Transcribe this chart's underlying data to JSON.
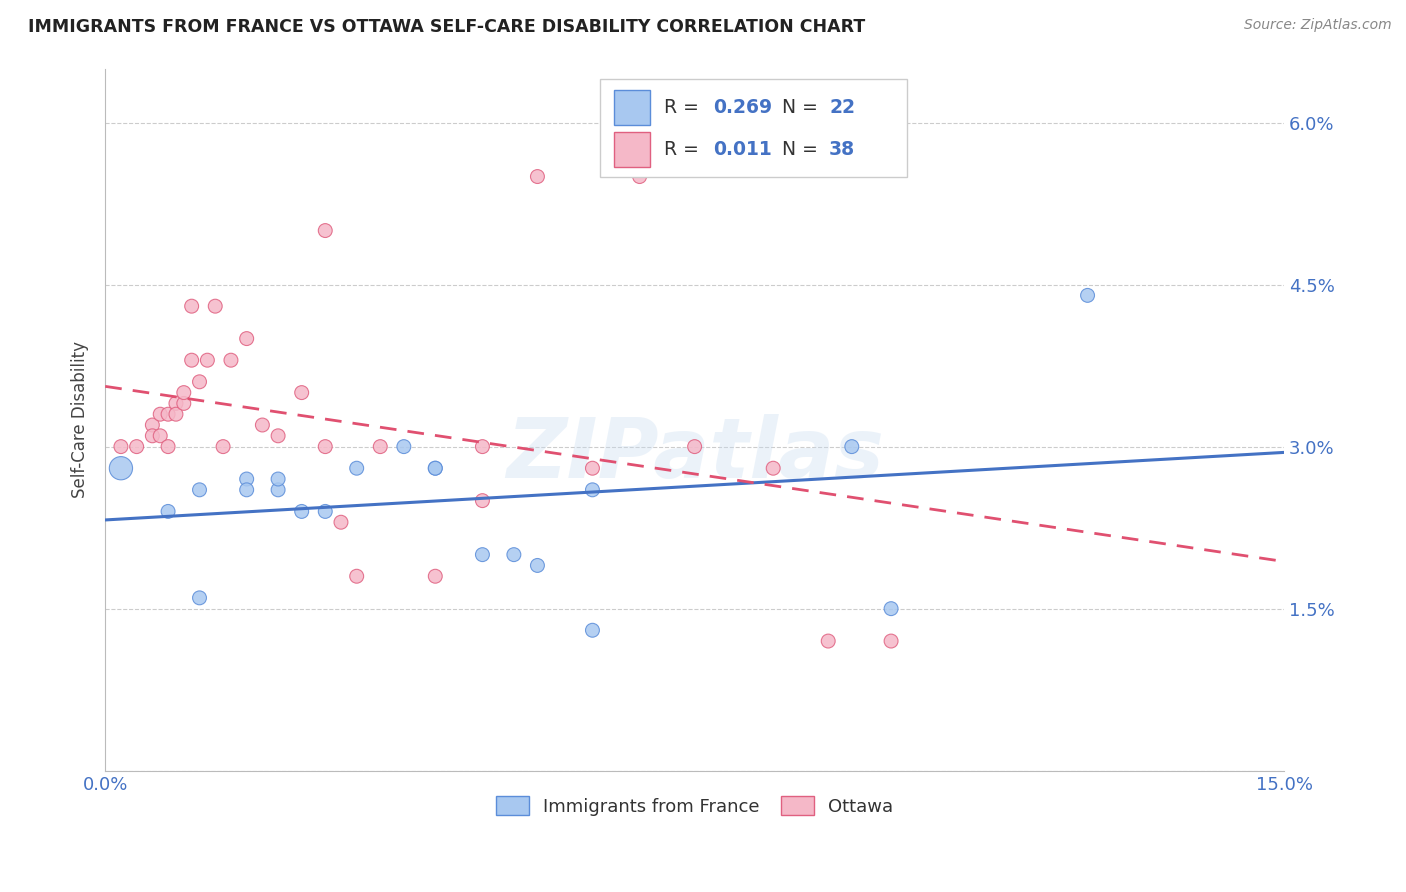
{
  "title": "IMMIGRANTS FROM FRANCE VS OTTAWA SELF-CARE DISABILITY CORRELATION CHART",
  "source": "Source: ZipAtlas.com",
  "ylabel": "Self-Care Disability",
  "x_ticks": [
    0.0,
    0.03,
    0.06,
    0.09,
    0.12,
    0.15
  ],
  "y_ticks": [
    0.0,
    0.015,
    0.03,
    0.045,
    0.06
  ],
  "y_tick_labels": [
    "",
    "1.5%",
    "3.0%",
    "4.5%",
    "6.0%"
  ],
  "xlim": [
    0.0,
    0.15
  ],
  "ylim": [
    0.0,
    0.065
  ],
  "blue_fill": "#A8C8F0",
  "blue_edge": "#5B8DD9",
  "pink_fill": "#F5B8C8",
  "pink_edge": "#E06080",
  "blue_line_color": "#4472C4",
  "pink_line_color": "#E05070",
  "watermark": "ZIPatlas",
  "blue_scatter_x": [
    0.002,
    0.008,
    0.012,
    0.012,
    0.018,
    0.018,
    0.022,
    0.022,
    0.025,
    0.028,
    0.032,
    0.038,
    0.042,
    0.042,
    0.048,
    0.052,
    0.055,
    0.062,
    0.062,
    0.095,
    0.1,
    0.125
  ],
  "blue_scatter_y": [
    0.028,
    0.024,
    0.016,
    0.026,
    0.027,
    0.026,
    0.026,
    0.027,
    0.024,
    0.024,
    0.028,
    0.03,
    0.028,
    0.028,
    0.02,
    0.02,
    0.019,
    0.026,
    0.013,
    0.03,
    0.015,
    0.044
  ],
  "blue_scatter_sizes": [
    280,
    100,
    100,
    100,
    100,
    100,
    100,
    100,
    100,
    100,
    100,
    100,
    100,
    100,
    100,
    100,
    100,
    100,
    100,
    100,
    100,
    100
  ],
  "pink_scatter_x": [
    0.002,
    0.004,
    0.006,
    0.006,
    0.007,
    0.007,
    0.008,
    0.008,
    0.009,
    0.009,
    0.01,
    0.01,
    0.011,
    0.011,
    0.012,
    0.013,
    0.014,
    0.015,
    0.016,
    0.018,
    0.02,
    0.022,
    0.025,
    0.028,
    0.028,
    0.03,
    0.032,
    0.035,
    0.042,
    0.048,
    0.048,
    0.055,
    0.062,
    0.068,
    0.075,
    0.085,
    0.092,
    0.1
  ],
  "pink_scatter_y": [
    0.03,
    0.03,
    0.032,
    0.031,
    0.031,
    0.033,
    0.033,
    0.03,
    0.034,
    0.033,
    0.034,
    0.035,
    0.038,
    0.043,
    0.036,
    0.038,
    0.043,
    0.03,
    0.038,
    0.04,
    0.032,
    0.031,
    0.035,
    0.05,
    0.03,
    0.023,
    0.018,
    0.03,
    0.018,
    0.03,
    0.025,
    0.055,
    0.028,
    0.055,
    0.03,
    0.028,
    0.012,
    0.012
  ],
  "pink_scatter_sizes": [
    100,
    100,
    100,
    100,
    100,
    100,
    100,
    100,
    100,
    100,
    100,
    100,
    100,
    100,
    100,
    100,
    100,
    100,
    100,
    100,
    100,
    100,
    100,
    100,
    100,
    100,
    100,
    100,
    100,
    100,
    100,
    100,
    100,
    100,
    100,
    100,
    100,
    100
  ]
}
